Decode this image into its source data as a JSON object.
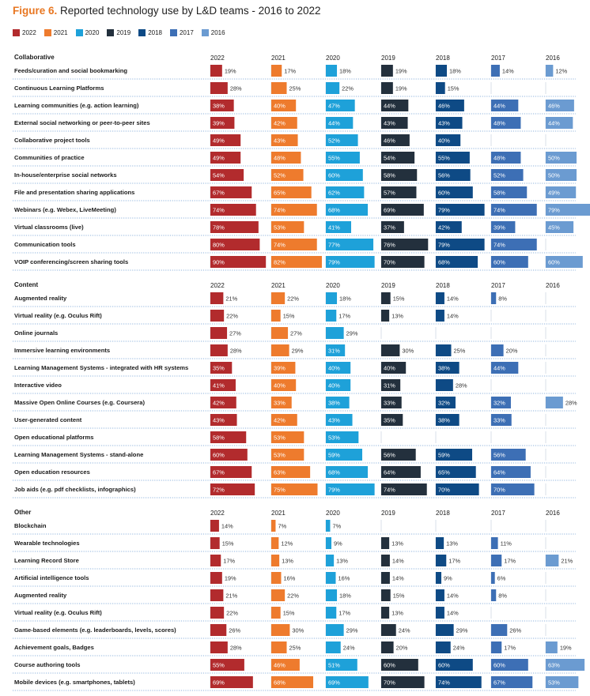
{
  "title_prefix": "Figure 6.",
  "title_main": "Reported technology use by L&D teams - 2016 to 2022",
  "colors": {
    "2022": "#b22b2d",
    "2021": "#ee7b2d",
    "2020": "#1ea1d9",
    "2019": "#23303d",
    "2018": "#0e4a85",
    "2017": "#3d6fb5",
    "2016": "#6b9bd1",
    "divider": "#6b9bd1"
  },
  "chart_data": {
    "type": "bar",
    "years": [
      "2022",
      "2021",
      "2020",
      "2019",
      "2018",
      "2017",
      "2016"
    ],
    "sections": [
      {
        "name": "Collaborative",
        "rows": [
          {
            "label": "Feeds/curation and social bookmarking",
            "values": [
              19,
              17,
              18,
              19,
              18,
              14,
              12
            ]
          },
          {
            "label": "Continuous Learning Platforms",
            "values": [
              28,
              25,
              22,
              19,
              15,
              null,
              null
            ]
          },
          {
            "label": "Learning communities (e.g. action learning)",
            "values": [
              38,
              40,
              47,
              44,
              46,
              44,
              46
            ]
          },
          {
            "label": "External social networking or peer-to-peer sites",
            "values": [
              39,
              42,
              44,
              43,
              43,
              48,
              44
            ]
          },
          {
            "label": "Collaborative project tools",
            "values": [
              49,
              43,
              52,
              46,
              40,
              null,
              null
            ]
          },
          {
            "label": "Communities of practice",
            "values": [
              49,
              48,
              55,
              54,
              55,
              48,
              50
            ]
          },
          {
            "label": "In-house/enterprise social networks",
            "values": [
              54,
              52,
              60,
              58,
              56,
              52,
              50
            ]
          },
          {
            "label": "File and presentation sharing applications",
            "values": [
              67,
              65,
              62,
              57,
              60,
              58,
              49
            ]
          },
          {
            "label": "Webinars (e.g. Webex, LiveMeeting)",
            "values": [
              74,
              74,
              68,
              69,
              79,
              74,
              79
            ]
          },
          {
            "label": "Virtual classrooms (live)",
            "values": [
              78,
              53,
              41,
              37,
              42,
              39,
              45
            ]
          },
          {
            "label": "Communication tools",
            "values": [
              80,
              74,
              77,
              76,
              79,
              74,
              null
            ]
          },
          {
            "label": "VOIP conferencing/screen sharing tools",
            "values": [
              90,
              82,
              79,
              70,
              68,
              60,
              60
            ]
          }
        ]
      },
      {
        "name": "Content",
        "rows": [
          {
            "label": "Augmented reality",
            "values": [
              21,
              22,
              18,
              15,
              14,
              8,
              null
            ]
          },
          {
            "label": "Virtual reality (e.g. Oculus Rift)",
            "values": [
              22,
              15,
              17,
              13,
              14,
              null,
              null
            ]
          },
          {
            "label": "Online journals",
            "values": [
              27,
              27,
              29,
              null,
              null,
              null,
              null
            ]
          },
          {
            "label": "Immersive learning environments",
            "values": [
              28,
              29,
              31,
              30,
              25,
              20,
              null
            ]
          },
          {
            "label": "Learning Management Systems - integrated with HR systems",
            "values": [
              35,
              39,
              40,
              40,
              38,
              44,
              null
            ]
          },
          {
            "label": "Interactive video",
            "values": [
              41,
              40,
              40,
              31,
              28,
              null,
              null
            ]
          },
          {
            "label": "Massive Open Online Courses (e.g. Coursera)",
            "values": [
              42,
              33,
              38,
              33,
              32,
              32,
              28
            ]
          },
          {
            "label": "User-generated content",
            "values": [
              43,
              42,
              43,
              35,
              38,
              33,
              null
            ]
          },
          {
            "label": "Open educational platforms",
            "values": [
              58,
              53,
              53,
              null,
              null,
              null,
              null
            ]
          },
          {
            "label": "Learning Management Systems - stand-alone",
            "values": [
              60,
              53,
              59,
              56,
              59,
              56,
              null
            ]
          },
          {
            "label": "Open education resources",
            "values": [
              67,
              63,
              68,
              64,
              65,
              64,
              null
            ]
          },
          {
            "label": "Job aids (e.g. pdf checklists, infographics)",
            "values": [
              72,
              75,
              79,
              74,
              70,
              70,
              null
            ]
          }
        ]
      },
      {
        "name": "Other",
        "rows": [
          {
            "label": "Blockchain",
            "values": [
              14,
              7,
              7,
              null,
              null,
              null,
              null
            ]
          },
          {
            "label": "Wearable technologies",
            "values": [
              15,
              12,
              9,
              13,
              13,
              11,
              null
            ]
          },
          {
            "label": "Learning Record Store",
            "values": [
              17,
              13,
              13,
              14,
              17,
              17,
              21
            ]
          },
          {
            "label": "Artificial intelligence tools",
            "values": [
              19,
              16,
              16,
              14,
              9,
              6,
              null
            ]
          },
          {
            "label": "Augmented reality",
            "values": [
              21,
              22,
              18,
              15,
              14,
              8,
              null
            ]
          },
          {
            "label": "Virtual reality (e.g. Oculus Rift)",
            "values": [
              22,
              15,
              17,
              13,
              14,
              null,
              null
            ]
          },
          {
            "label": "Game-based elements (e.g. leaderboards, levels, scores)",
            "values": [
              26,
              30,
              29,
              24,
              29,
              26,
              null
            ]
          },
          {
            "label": "Achievement goals, Badges",
            "values": [
              28,
              25,
              24,
              20,
              24,
              17,
              19
            ]
          },
          {
            "label": "Course authoring tools",
            "values": [
              55,
              46,
              51,
              60,
              60,
              60,
              63
            ]
          },
          {
            "label": "Mobile devices (e.g. smartphones, tablets)",
            "values": [
              69,
              68,
              69,
              70,
              74,
              67,
              53
            ]
          }
        ]
      }
    ]
  }
}
